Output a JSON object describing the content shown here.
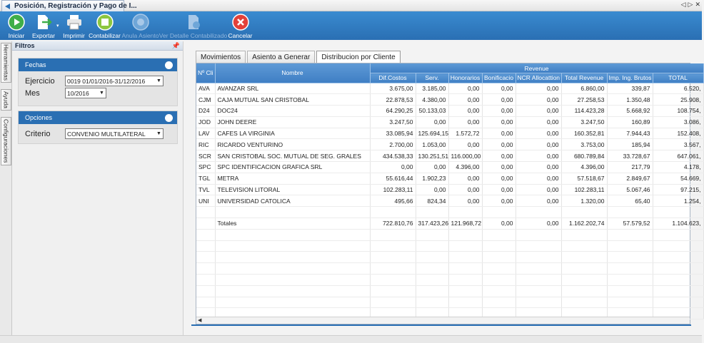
{
  "window": {
    "tab_title": "Posición, Registración y Pago de I...",
    "controls": [
      "◁",
      "▷",
      "✕"
    ]
  },
  "toolbar": {
    "buttons": [
      {
        "label": "Iniciar",
        "icon": "play-icon",
        "enabled": true
      },
      {
        "label": "Exportar",
        "icon": "export-icon",
        "enabled": true
      },
      {
        "label": "Imprimir",
        "icon": "printer-icon",
        "enabled": true
      },
      {
        "label": "Contabilizar",
        "icon": "ledger-icon",
        "enabled": true
      },
      {
        "label": "Anula Asiento",
        "icon": "cancel-entry-icon",
        "enabled": false
      },
      {
        "label": "Ver Detalle Contabilizado",
        "icon": "detail-doc-icon",
        "enabled": false
      },
      {
        "label": "Cancelar",
        "icon": "close-circle-icon",
        "enabled": true
      }
    ]
  },
  "side_tabs": [
    "Herramientas",
    "Ayuda",
    "Configuraciones"
  ],
  "filters": {
    "title": "Filtros",
    "fechas": {
      "title": "Fechas",
      "ejercicio_label": "Ejercicio",
      "ejercicio_value": "0019 01/01/2016-31/12/2016",
      "mes_label": "Mes",
      "mes_value": "10/2016"
    },
    "opciones": {
      "title": "Opciones",
      "criterio_label": "Criterio",
      "criterio_value": "CONVENIO MULTILATERAL"
    }
  },
  "tabs": [
    "Movimientos",
    "Asiento a Generar",
    "Distribucion por Cliente"
  ],
  "grid": {
    "group_header": "Revenue",
    "col_cli": "Nº Cli",
    "col_nombre": "Nombre",
    "columns": [
      "Dif.Costos",
      "Serv.",
      "Honorarios",
      "Bonificacio",
      "NCR Allocattion",
      "Total Revenue",
      "Imp. Ing. Brutos",
      "TOTAL"
    ],
    "rows": [
      {
        "cli": "AVA",
        "nombre": "AVANZAR SRL",
        "vals": [
          "3.675,00",
          "3.185,00",
          "0,00",
          "0,00",
          "0,00",
          "6.860,00",
          "339,87",
          "6.520,"
        ]
      },
      {
        "cli": "CJM",
        "nombre": "CAJA MUTUAL SAN CRISTOBAL",
        "vals": [
          "22.878,53",
          "4.380,00",
          "0,00",
          "0,00",
          "0,00",
          "27.258,53",
          "1.350,48",
          "25.908,"
        ]
      },
      {
        "cli": "D24",
        "nombre": "DOC24",
        "vals": [
          "64.290,25",
          "50.133,03",
          "0,00",
          "0,00",
          "0,00",
          "114.423,28",
          "5.668,92",
          "108.754,"
        ]
      },
      {
        "cli": "JOD",
        "nombre": "JOHN DEERE",
        "vals": [
          "3.247,50",
          "0,00",
          "0,00",
          "0,00",
          "0,00",
          "3.247,50",
          "160,89",
          "3.086,"
        ]
      },
      {
        "cli": "LAV",
        "nombre": "CAFES LA VIRGINIA",
        "vals": [
          "33.085,94",
          "125.694,15",
          "1.572,72",
          "0,00",
          "0,00",
          "160.352,81",
          "7.944,43",
          "152.408,"
        ]
      },
      {
        "cli": "RIC",
        "nombre": "RICARDO VENTURINO",
        "vals": [
          "2.700,00",
          "1.053,00",
          "0,00",
          "0,00",
          "0,00",
          "3.753,00",
          "185,94",
          "3.567,"
        ]
      },
      {
        "cli": "SCR",
        "nombre": "SAN CRISTOBAL SOC. MUTUAL DE SEG. GRALES",
        "vals": [
          "434.538,33",
          "130.251,51",
          "116.000,00",
          "0,00",
          "0,00",
          "680.789,84",
          "33.728,67",
          "647.061,"
        ]
      },
      {
        "cli": "SPC",
        "nombre": "SPC IDENTIFICACION GRAFICA SRL",
        "vals": [
          "0,00",
          "0,00",
          "4.396,00",
          "0,00",
          "0,00",
          "4.396,00",
          "217,79",
          "4.178,"
        ]
      },
      {
        "cli": "TGL",
        "nombre": "METRA",
        "vals": [
          "55.616,44",
          "1.902,23",
          "0,00",
          "0,00",
          "0,00",
          "57.518,67",
          "2.849,67",
          "54.669,"
        ]
      },
      {
        "cli": "TVL",
        "nombre": "TELEVISION LITORAL",
        "vals": [
          "102.283,11",
          "0,00",
          "0,00",
          "0,00",
          "0,00",
          "102.283,11",
          "5.067,46",
          "97.215,"
        ]
      },
      {
        "cli": "UNI",
        "nombre": "UNIVERSIDAD CATOLICA",
        "vals": [
          "495,66",
          "824,34",
          "0,00",
          "0,00",
          "0,00",
          "1.320,00",
          "65,40",
          "1.254,"
        ]
      }
    ],
    "totals": {
      "label": "Totales",
      "vals": [
        "722.810,76",
        "317.423,26",
        "121.968,72",
        "0,00",
        "0,00",
        "1.162.202,74",
        "57.579,52",
        "1.104.623,"
      ]
    },
    "empty_rows_after": 8
  }
}
